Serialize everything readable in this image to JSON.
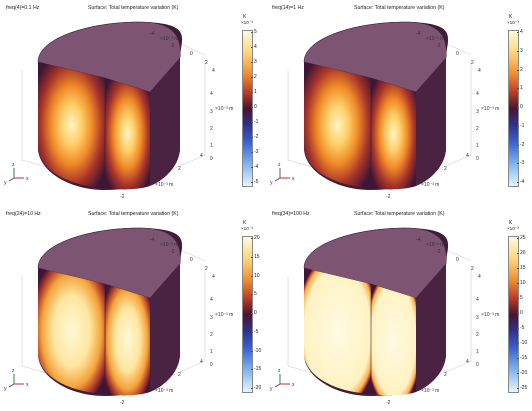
{
  "panels": [
    {
      "freq_label": "freq(4)=0.1 Hz",
      "surface_title": "Surface: Total temperature variation (K)",
      "cb_unit": "K",
      "cb_exp": "×10⁻³",
      "cb_ticks": [
        "5",
        "4",
        "3",
        "2",
        "1",
        "0",
        "-1",
        "-2",
        "-3",
        "-4",
        "-5"
      ],
      "scale_labels": {
        "x1": "×10⁻³ m",
        "x2": "×10⁻³ m",
        "x3": "×10⁻³ m"
      },
      "style": "hot-core"
    },
    {
      "freq_label": "freq(14)=1 Hz",
      "surface_title": "Surface: Total temperature variation (K)",
      "cb_unit": "K",
      "cb_exp": "×10⁻³",
      "cb_ticks": [
        "4",
        "3",
        "2",
        "1",
        "0",
        "-1",
        "-2",
        "-3",
        "-4"
      ],
      "scale_labels": {
        "x1": "×10⁻³ m",
        "x2": "×10⁻³ m",
        "x3": "×10⁻³ m"
      },
      "style": "hot-core"
    },
    {
      "freq_label": "freq(24)=10 Hz",
      "surface_title": "Surface: Total temperature variation (K)",
      "cb_unit": "K",
      "cb_exp": "×10⁻³",
      "cb_ticks": [
        "20",
        "15",
        "10",
        "5",
        "0",
        "-5",
        "-10",
        "-15",
        "-20"
      ],
      "scale_labels": {
        "x1": "×10⁻³ m",
        "x2": "×10⁻³ m",
        "x3": "×10⁻³ m"
      },
      "style": "warm-fill"
    },
    {
      "freq_label": "freq(34)=100 Hz",
      "surface_title": "Surface: Total temperature variation (K)",
      "cb_unit": "K",
      "cb_exp": "×10⁻³",
      "cb_ticks": [
        "25",
        "20",
        "15",
        "10",
        "5",
        "0",
        "-5",
        "-10",
        "-15",
        "-20",
        "-25"
      ],
      "scale_labels": {
        "x1": "×10⁻³ m",
        "x2": "×10⁻³ m",
        "x3": "×10⁻³ m"
      },
      "style": "saturated"
    }
  ],
  "axis_ticks": {
    "x_back": [
      "-4",
      "-2",
      "0",
      "2",
      "4"
    ],
    "y_right": [
      "4",
      "3",
      "2",
      "1",
      "0"
    ],
    "x_front": [
      "-2",
      "0",
      "2",
      "4"
    ]
  },
  "triad": {
    "x": "x",
    "y": "y",
    "z": "z"
  },
  "colors": {
    "solid": "#76516b",
    "top": "#7d5572",
    "dark_side": "#3d1d37",
    "hot": "#fff6c8",
    "mid": "#f29a2f"
  }
}
